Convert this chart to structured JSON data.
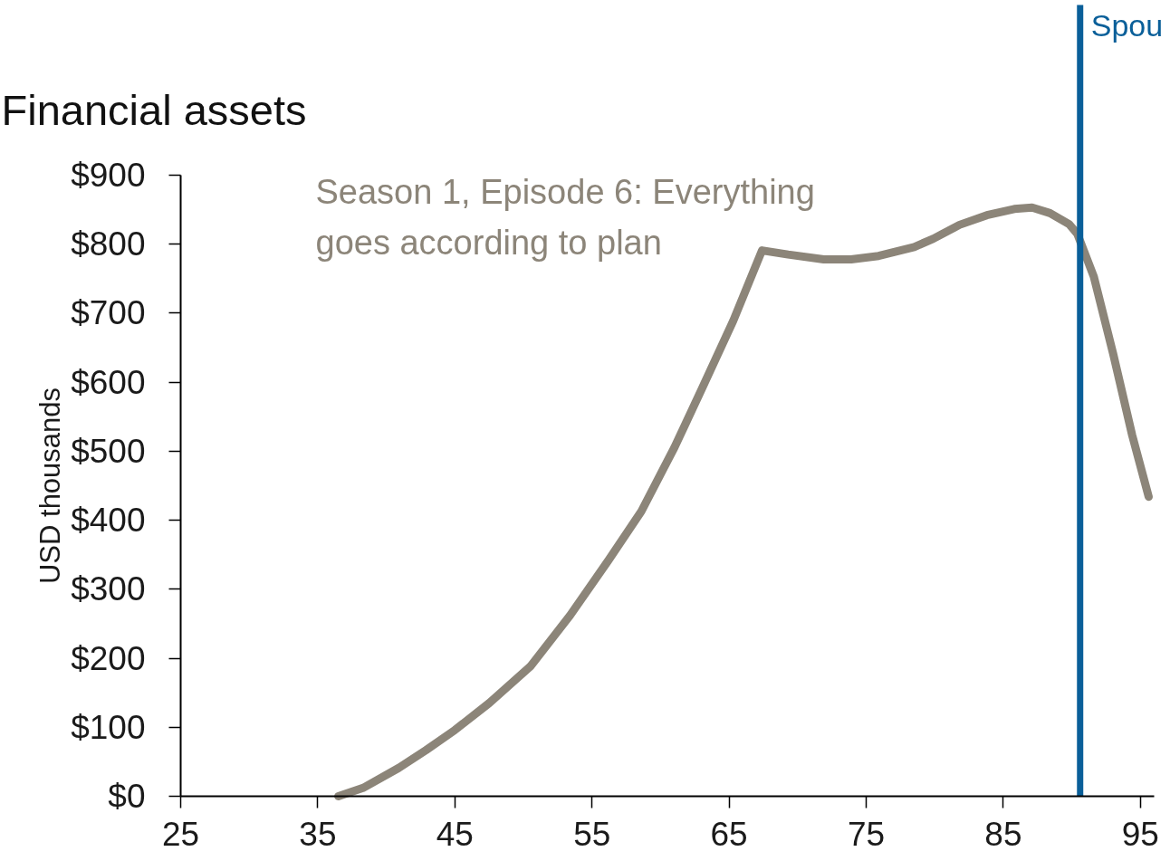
{
  "chart_data": {
    "type": "line",
    "title": "Financial assets",
    "ylabel": "USD thousands",
    "x": [
      36.5,
      38.3,
      40.9,
      42.9,
      45.0,
      47.5,
      50.5,
      53.4,
      56.2,
      58.6,
      61.0,
      63.0,
      65.3,
      67.4,
      69.3,
      71.9,
      73.9,
      75.9,
      78.5,
      79.9,
      81.8,
      83.8,
      85.8,
      87.1,
      88.4,
      89.8,
      90.4,
      91.6,
      93.0,
      94.4,
      95.6
    ],
    "series": [
      {
        "name": "Season 1, Episode 6: Everything goes according to plan",
        "color": "#8c8579",
        "values": [
          0,
          12,
          41,
          67,
          96,
          135,
          188,
          262,
          342,
          413,
          505,
          590,
          689,
          791,
          785,
          778,
          778,
          783,
          796,
          808,
          828,
          842,
          851,
          853,
          845,
          829,
          815,
          753,
          642,
          523,
          434
        ]
      }
    ],
    "xlim": [
      25,
      96
    ],
    "ylim": [
      0,
      900
    ],
    "xticks": [
      25,
      35,
      45,
      55,
      65,
      75,
      85,
      95
    ],
    "yticks": [
      {
        "value": 0,
        "label": "$0"
      },
      {
        "value": 100,
        "label": "$100"
      },
      {
        "value": 200,
        "label": "$200"
      },
      {
        "value": 300,
        "label": "$300"
      },
      {
        "value": 400,
        "label": "$400"
      },
      {
        "value": 500,
        "label": "$500"
      },
      {
        "value": 600,
        "label": "$600"
      },
      {
        "value": 700,
        "label": "$700"
      },
      {
        "value": 800,
        "label": "$800"
      },
      {
        "value": 900,
        "label": "$900"
      }
    ],
    "grid": false,
    "legend": false,
    "line_style": "solid",
    "ref_lines": [
      {
        "axis": "x",
        "value": 90.6,
        "label": "Spou",
        "color": "#0a5f99"
      }
    ]
  }
}
